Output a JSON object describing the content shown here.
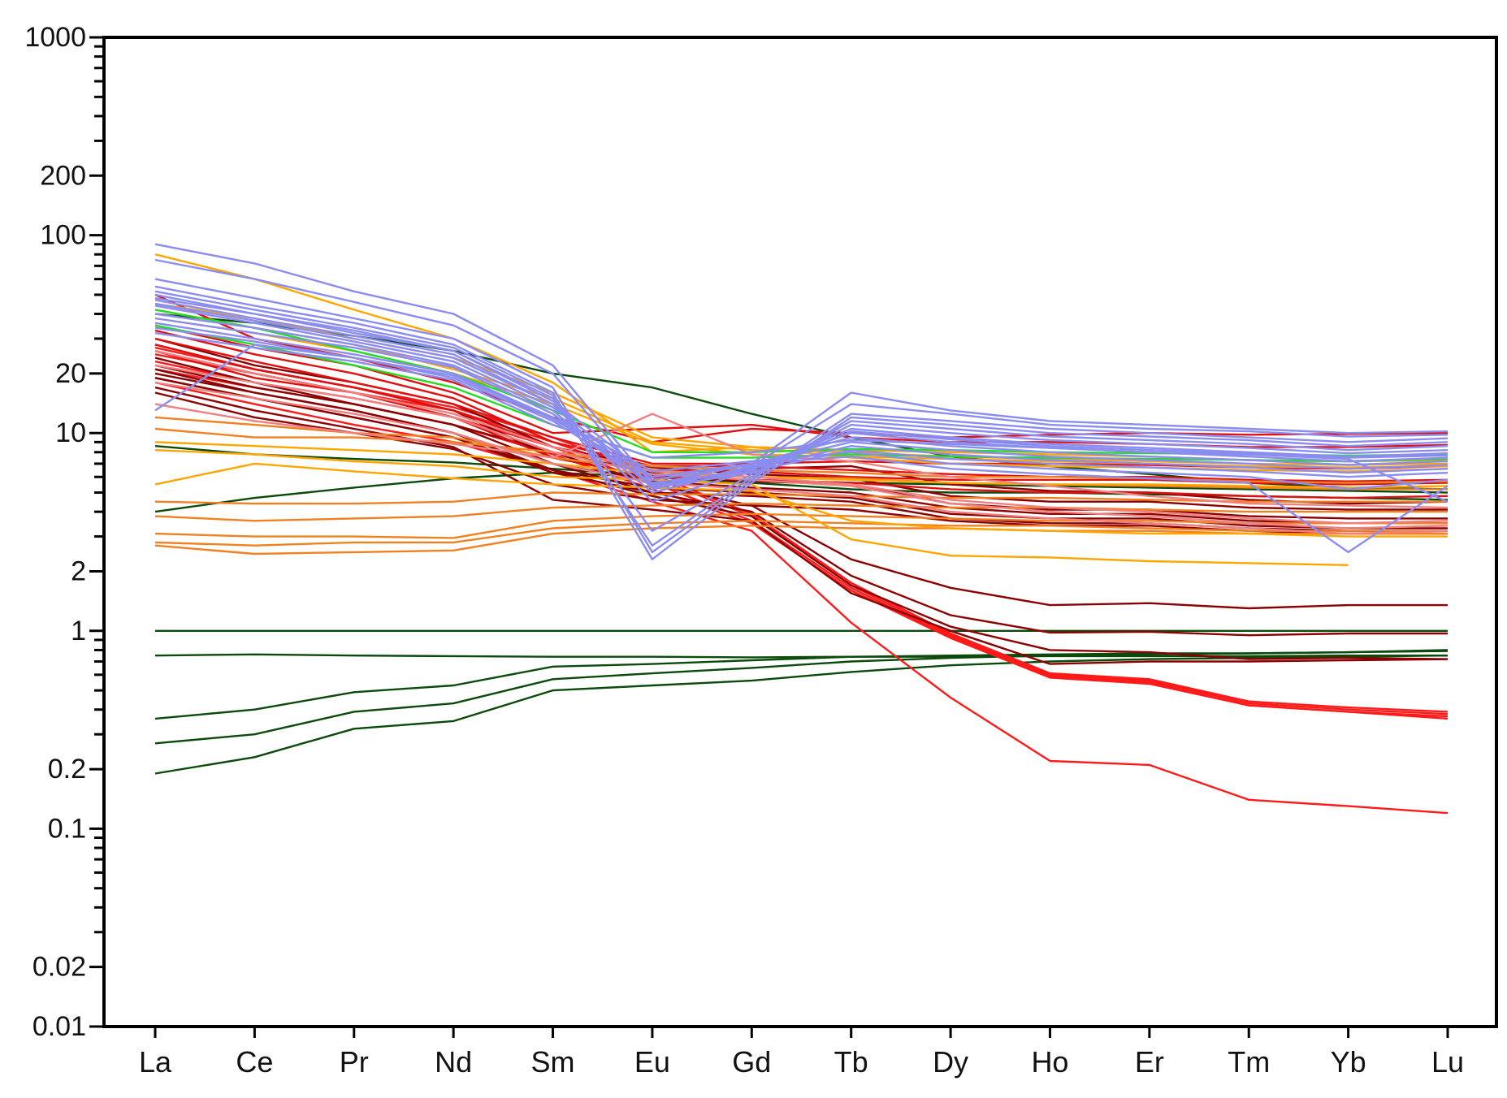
{
  "chart_data": {
    "type": "line",
    "title": "",
    "xlabel": "",
    "ylabel": "",
    "y_scale": "log",
    "ylim": [
      0.01,
      1000
    ],
    "categories": [
      "La",
      "Ce",
      "Pr",
      "Nd",
      "Sm",
      "Eu",
      "Gd",
      "Tb",
      "Dy",
      "Ho",
      "Er",
      "Tm",
      "Yb",
      "Lu"
    ],
    "y_tick_labels": [
      "0.01",
      "0.02",
      "0.1",
      "0.2",
      "1",
      "2",
      "10",
      "20",
      "100",
      "200",
      "1000"
    ],
    "grid": false,
    "legend": "none",
    "colors": {
      "darkgreen": "#0a4a0a",
      "brightred": "#ff1a1a",
      "darkred": "#8b0000",
      "red": "#e01010",
      "orange": "#f08020",
      "amber": "#ffa500",
      "pink": "#f08080",
      "lavender": "#8a8cf0",
      "lime": "#22dd22"
    },
    "series": [
      {
        "color": "darkgreen",
        "values": [
          1,
          1,
          1,
          1,
          1,
          1,
          1,
          1,
          1,
          1,
          1,
          1,
          1,
          1
        ]
      },
      {
        "color": "darkgreen",
        "values": [
          0.75,
          0.76,
          0.75,
          0.745,
          0.74,
          0.74,
          0.735,
          0.74,
          0.74,
          0.745,
          0.745,
          0.745,
          0.75,
          0.75
        ]
      },
      {
        "color": "darkgreen",
        "values": [
          0.36,
          0.4,
          0.49,
          0.53,
          0.66,
          0.68,
          0.71,
          0.74,
          0.75,
          0.76,
          0.77,
          0.77,
          0.78,
          0.8
        ]
      },
      {
        "color": "darkgreen",
        "values": [
          0.27,
          0.3,
          0.39,
          0.43,
          0.57,
          0.61,
          0.65,
          0.7,
          0.73,
          0.75,
          0.76,
          0.77,
          0.78,
          0.79
        ]
      },
      {
        "color": "darkgreen",
        "values": [
          0.19,
          0.23,
          0.32,
          0.35,
          0.5,
          0.53,
          0.56,
          0.62,
          0.67,
          0.7,
          0.72,
          0.73,
          0.74,
          0.75
        ]
      },
      {
        "color": "darkgreen",
        "values": [
          4.0,
          4.7,
          5.3,
          5.9,
          6.3,
          6.0,
          5.6,
          5.2,
          5.0,
          5.0,
          4.9,
          4.8,
          4.7,
          4.6
        ]
      },
      {
        "color": "darkgreen",
        "values": [
          8.6,
          7.8,
          7.4,
          7.1,
          6.6,
          6.1,
          5.8,
          5.6,
          5.5,
          5.4,
          5.3,
          5.2,
          5.1,
          5.0
        ]
      },
      {
        "color": "darkgreen",
        "values": [
          40,
          36,
          31,
          26,
          20,
          17,
          12.5,
          9.5,
          7.6,
          6.8,
          6.2,
          5.6,
          5.3,
          5.2
        ]
      },
      {
        "color": "brightred",
        "values": [
          25,
          20,
          16,
          13,
          9,
          6.0,
          3.8,
          1.7,
          0.95,
          0.6,
          0.56,
          0.43,
          0.4,
          0.38
        ]
      },
      {
        "color": "brightred",
        "values": [
          27,
          21,
          17,
          13.5,
          9.5,
          6.2,
          3.9,
          1.75,
          0.97,
          0.61,
          0.57,
          0.44,
          0.41,
          0.39
        ]
      },
      {
        "color": "brightred",
        "values": [
          23,
          18,
          15,
          12,
          8.5,
          5.6,
          3.6,
          1.65,
          0.93,
          0.59,
          0.55,
          0.42,
          0.39,
          0.37
        ]
      },
      {
        "color": "brightred",
        "values": [
          21,
          17,
          14,
          11,
          7.8,
          5.2,
          3.5,
          1.6,
          0.92,
          0.58,
          0.54,
          0.42,
          0.39,
          0.36
        ]
      },
      {
        "color": "brightred",
        "values": [
          18,
          14,
          11,
          9,
          6.5,
          4.5,
          3.2,
          1.1,
          0.46,
          0.22,
          0.21,
          0.14,
          0.13,
          0.12
        ]
      },
      {
        "color": "darkred",
        "values": [
          22,
          17,
          14,
          11,
          8,
          5.5,
          4.3,
          2.3,
          1.65,
          1.35,
          1.38,
          1.3,
          1.35,
          1.35
        ]
      },
      {
        "color": "darkred",
        "values": [
          20,
          16,
          13,
          10,
          7,
          5.0,
          4.0,
          1.9,
          1.2,
          0.98,
          0.99,
          0.95,
          0.97,
          0.97
        ]
      },
      {
        "color": "darkred",
        "values": [
          19,
          15,
          12,
          9.5,
          6.5,
          4.8,
          3.8,
          1.7,
          1.05,
          0.8,
          0.78,
          0.72,
          0.73,
          0.72
        ]
      },
      {
        "color": "darkred",
        "values": [
          17,
          13,
          10.5,
          8.5,
          4.6,
          4.1,
          3.6,
          1.55,
          1.0,
          0.68,
          0.7,
          0.7,
          0.71,
          0.72
        ]
      },
      {
        "color": "darkred",
        "values": [
          28,
          21,
          17,
          13,
          7.5,
          6.0,
          5.7,
          5.5,
          4.4,
          4.1,
          4.1,
          3.8,
          3.7,
          3.7
        ]
      },
      {
        "color": "darkred",
        "values": [
          24,
          18,
          14,
          11,
          7.0,
          5.7,
          5.3,
          5.0,
          4.2,
          3.9,
          3.9,
          3.6,
          3.5,
          3.5
        ]
      },
      {
        "color": "darkred",
        "values": [
          21,
          16,
          13,
          10,
          6.5,
          5.3,
          5.0,
          4.7,
          3.9,
          3.7,
          3.7,
          3.4,
          3.3,
          3.3
        ]
      },
      {
        "color": "darkred",
        "values": [
          30,
          22,
          18,
          14,
          8.5,
          6.7,
          6.2,
          5.9,
          4.8,
          4.5,
          4.5,
          4.2,
          4.1,
          4.1
        ]
      },
      {
        "color": "darkred",
        "values": [
          19,
          15,
          12,
          9.5,
          6.3,
          5.0,
          4.8,
          4.5,
          3.7,
          3.5,
          3.5,
          3.3,
          3.2,
          3.2
        ]
      },
      {
        "color": "darkred",
        "values": [
          26,
          20,
          16,
          12,
          8.0,
          6.3,
          6.6,
          6.8,
          5.5,
          5.1,
          5.0,
          4.6,
          4.4,
          4.5
        ]
      },
      {
        "color": "darkred",
        "values": [
          16,
          12,
          10,
          8.3,
          5.5,
          4.6,
          4.3,
          4.1,
          3.6,
          3.4,
          3.4,
          3.2,
          3.1,
          3.1
        ]
      },
      {
        "color": "red",
        "values": [
          50,
          30,
          24,
          18,
          12,
          9.0,
          10.5,
          10,
          9.5,
          9.8,
          10,
          9.8,
          9.9,
          10
        ]
      },
      {
        "color": "red",
        "values": [
          35,
          27,
          22,
          16,
          10,
          10.5,
          11,
          9.5,
          9.0,
          9.0,
          8.8,
          8.5,
          8.5,
          8.7
        ]
      },
      {
        "color": "red",
        "values": [
          30,
          23,
          18,
          14,
          9.5,
          7.0,
          7.0,
          7.2,
          7.0,
          7.0,
          6.9,
          6.7,
          6.6,
          6.8
        ]
      },
      {
        "color": "red",
        "values": [
          28,
          21,
          17,
          13,
          8.5,
          6.5,
          6.4,
          6.0,
          5.8,
          5.8,
          5.8,
          5.6,
          5.5,
          5.6
        ]
      },
      {
        "color": "red",
        "values": [
          33,
          25,
          20,
          15,
          9.0,
          6.8,
          6.8,
          6.5,
          6.2,
          6.0,
          6.0,
          5.8,
          5.7,
          5.8
        ]
      },
      {
        "color": "red",
        "values": [
          26,
          19,
          16,
          12,
          7.5,
          6.0,
          5.8,
          5.6,
          5.2,
          5.0,
          5.0,
          4.8,
          4.7,
          4.8
        ]
      },
      {
        "color": "orange",
        "values": [
          4.5,
          4.4,
          4.4,
          4.5,
          5.0,
          4.9,
          4.9,
          4.8,
          4.7,
          4.7,
          4.6,
          4.5,
          4.5,
          4.5
        ]
      },
      {
        "color": "orange",
        "values": [
          3.8,
          3.6,
          3.7,
          3.8,
          4.2,
          4.3,
          4.4,
          4.3,
          4.2,
          4.2,
          4.1,
          4.0,
          4.0,
          4.0
        ]
      },
      {
        "color": "orange",
        "values": [
          3.1,
          3.0,
          3.0,
          2.95,
          3.6,
          3.8,
          3.9,
          3.8,
          3.7,
          3.6,
          3.6,
          3.5,
          3.5,
          3.5
        ]
      },
      {
        "color": "orange",
        "values": [
          2.8,
          2.7,
          2.8,
          2.8,
          3.3,
          3.5,
          3.6,
          3.5,
          3.4,
          3.4,
          3.3,
          3.2,
          3.2,
          3.2
        ]
      },
      {
        "color": "orange",
        "values": [
          2.7,
          2.45,
          2.5,
          2.55,
          3.1,
          3.3,
          3.4,
          3.3,
          3.3,
          3.2,
          3.2,
          3.1,
          3.1,
          3.1
        ]
      },
      {
        "color": "orange",
        "values": [
          10.5,
          9.5,
          9.5,
          9.0,
          8.0,
          6.8,
          6.5,
          6.3,
          6.0,
          6.0,
          5.9,
          5.7,
          5.6,
          5.7
        ]
      },
      {
        "color": "orange",
        "values": [
          12,
          11,
          10,
          9.5,
          7.5,
          6.5,
          6.0,
          5.9,
          5.6,
          5.5,
          5.4,
          5.3,
          5.2,
          5.2
        ]
      },
      {
        "color": "amber",
        "values": [
          80,
          60,
          42,
          30,
          18,
          8.0,
          8.5,
          7.5,
          7.0,
          6.8,
          6.7,
          6.5,
          6.4,
          6.6
        ]
      },
      {
        "color": "amber",
        "values": [
          8.2,
          7.8,
          7.2,
          6.8,
          6.0,
          5.8,
          5.5,
          2.9,
          2.4,
          2.35,
          2.25,
          2.2,
          2.15,
          null
        ]
      },
      {
        "color": "amber",
        "values": [
          5.5,
          7.0,
          6.4,
          5.9,
          5.5,
          5.3,
          5.1,
          3.6,
          3.3,
          3.2,
          3.1,
          3.1,
          3.0,
          3.0
        ]
      },
      {
        "color": "amber",
        "values": [
          9.0,
          8.6,
          8.2,
          7.8,
          7.0,
          6.2,
          6.0,
          5.8,
          5.6,
          5.5,
          5.5,
          5.4,
          5.3,
          5.4
        ]
      },
      {
        "color": "amber",
        "values": [
          45,
          38,
          30,
          24,
          16,
          9.5,
          8.5,
          8.2,
          8.0,
          7.8,
          7.6,
          7.3,
          7.2,
          7.3
        ]
      },
      {
        "color": "amber",
        "values": [
          38,
          32,
          26,
          20,
          14,
          8.8,
          7.8,
          7.6,
          7.4,
          7.2,
          7.0,
          6.8,
          6.7,
          6.8
        ]
      },
      {
        "color": "amber",
        "values": [
          42,
          34,
          28,
          21,
          15,
          9.0,
          8.2,
          8.0,
          7.6,
          7.4,
          7.2,
          7.0,
          6.9,
          7.0
        ]
      },
      {
        "color": "pink",
        "values": [
          14,
          11.5,
          10,
          8.8,
          7.5,
          12.5,
          7.8,
          7.2,
          6.0,
          5.4,
          4.8,
          4.4,
          4.3,
          4.2
        ]
      },
      {
        "color": "pink",
        "values": [
          22,
          18,
          15,
          12,
          8.0,
          6.2,
          5.8,
          5.4,
          4.4,
          4.0,
          3.8,
          3.5,
          3.3,
          3.4
        ]
      },
      {
        "color": "pink",
        "values": [
          18,
          15,
          12.5,
          10,
          7.0,
          5.6,
          5.2,
          4.8,
          4.0,
          3.7,
          3.5,
          3.3,
          3.1,
          3.2
        ]
      },
      {
        "color": "pink",
        "values": [
          26,
          20,
          16,
          12.5,
          8.5,
          6.4,
          6.0,
          5.5,
          4.6,
          4.2,
          4.0,
          3.7,
          3.5,
          3.6
        ]
      },
      {
        "color": "lime",
        "values": [
          35,
          28,
          22,
          17,
          11,
          7.5,
          7.5,
          7.8,
          7.6,
          7.5,
          7.4,
          7.3,
          7.2,
          7.4
        ]
      },
      {
        "color": "lime",
        "values": [
          42,
          34,
          26,
          20,
          13,
          8.0,
          8.0,
          8.3,
          8.2,
          8.0,
          7.9,
          7.8,
          7.7,
          7.8
        ]
      },
      {
        "color": "lavender",
        "values": [
          90,
          72,
          52,
          40,
          22,
          5.5,
          7.0,
          16,
          13,
          11.5,
          11,
          10.5,
          10,
          10.2
        ]
      },
      {
        "color": "lavender",
        "values": [
          75,
          60,
          46,
          35,
          20,
          5.2,
          6.8,
          14,
          12.5,
          11,
          10.5,
          10.2,
          9.6,
          9.8
        ]
      },
      {
        "color": "lavender",
        "values": [
          60,
          48,
          38,
          30,
          17,
          2.5,
          5.8,
          12.5,
          11.5,
          10.5,
          10,
          9.5,
          9.0,
          9.4
        ]
      },
      {
        "color": "lavender",
        "values": [
          55,
          44,
          36,
          28,
          16,
          2.3,
          5.6,
          12,
          11,
          10,
          9.6,
          9.2,
          8.6,
          9.0
        ]
      },
      {
        "color": "lavender",
        "values": [
          48,
          40,
          32,
          26,
          15,
          2.7,
          6.0,
          11.5,
          10.5,
          9.6,
          9.2,
          8.8,
          8.2,
          8.6
        ]
      },
      {
        "color": "lavender",
        "values": [
          52,
          42,
          34,
          27,
          15.5,
          3.2,
          6.2,
          11,
          10,
          9.2,
          8.8,
          8.4,
          7.9,
          8.2
        ]
      },
      {
        "color": "lavender",
        "values": [
          45,
          37,
          30,
          24,
          14,
          4.5,
          6.5,
          10.5,
          9.5,
          8.8,
          8.4,
          8.0,
          7.6,
          7.9
        ]
      },
      {
        "color": "lavender",
        "values": [
          40,
          34,
          28,
          22,
          13,
          5.0,
          6.7,
          10,
          9.0,
          8.4,
          8.0,
          7.6,
          7.2,
          7.5
        ]
      },
      {
        "color": "lavender",
        "values": [
          50,
          40,
          33,
          26,
          14.5,
          6.0,
          7.0,
          9.5,
          8.6,
          8.0,
          7.6,
          7.3,
          6.9,
          7.2
        ]
      },
      {
        "color": "lavender",
        "values": [
          44,
          36,
          29,
          23,
          13.5,
          5.8,
          6.9,
          9.0,
          8.2,
          7.6,
          7.3,
          7.0,
          6.6,
          6.9
        ]
      },
      {
        "color": "lavender",
        "values": [
          38,
          32,
          27,
          21.5,
          12.5,
          5.4,
          6.6,
          8.6,
          7.8,
          7.3,
          7.0,
          6.7,
          6.3,
          6.6
        ]
      },
      {
        "color": "lavender",
        "values": [
          13,
          28,
          24,
          19,
          11.5,
          5.6,
          6.4,
          8.2,
          7.4,
          7.0,
          6.7,
          6.4,
          6.0,
          6.3
        ]
      },
      {
        "color": "lavender",
        "values": [
          36,
          30,
          25,
          20,
          12,
          6.4,
          7.2,
          8.0,
          7.0,
          6.6,
          6.3,
          6.0,
          5.2,
          5.8
        ]
      },
      {
        "color": "lavender",
        "values": [
          34,
          29,
          24,
          19.5,
          11.8,
          6.0,
          7.0,
          7.6,
          6.6,
          6.2,
          5.9,
          5.6,
          2.5,
          5.4
        ]
      },
      {
        "color": "lavender",
        "values": [
          32,
          27,
          23,
          18.5,
          11,
          7.5,
          8.0,
          9.2,
          8.8,
          8.4,
          8.0,
          7.8,
          7.4,
          4.5
        ]
      },
      {
        "color": "lavender",
        "values": [
          47,
          38,
          31,
          25,
          14,
          5.3,
          6.3,
          10.2,
          9.3,
          8.6,
          8.2,
          7.9,
          7.5,
          7.7
        ]
      }
    ]
  }
}
